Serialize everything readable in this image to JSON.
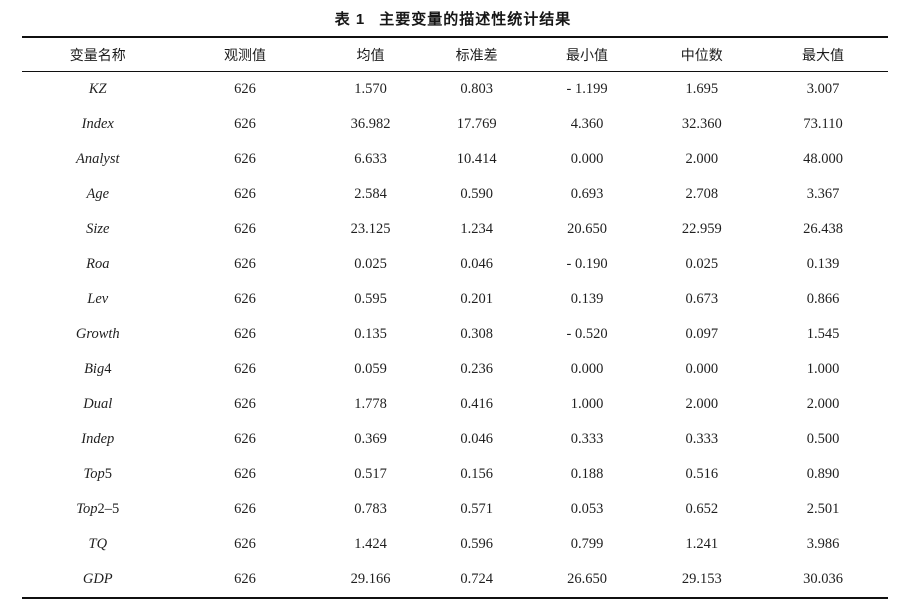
{
  "caption": {
    "label": "表 1",
    "title": "主要变量的描述性统计结果"
  },
  "table": {
    "columns": [
      "变量名称",
      "观测值",
      "均值",
      "标准差",
      "最小值",
      "中位数",
      "最大值"
    ],
    "rows": [
      [
        "KZ",
        "626",
        "1.570",
        "0.803",
        "- 1.199",
        "1.695",
        "3.007"
      ],
      [
        "Index",
        "626",
        "36.982",
        "17.769",
        "4.360",
        "32.360",
        "73.110"
      ],
      [
        "Analyst",
        "626",
        "6.633",
        "10.414",
        "0.000",
        "2.000",
        "48.000"
      ],
      [
        "Age",
        "626",
        "2.584",
        "0.590",
        "0.693",
        "2.708",
        "3.367"
      ],
      [
        "Size",
        "626",
        "23.125",
        "1.234",
        "20.650",
        "22.959",
        "26.438"
      ],
      [
        "Roa",
        "626",
        "0.025",
        "0.046",
        "- 0.190",
        "0.025",
        "0.139"
      ],
      [
        "Lev",
        "626",
        "0.595",
        "0.201",
        "0.139",
        "0.673",
        "0.866"
      ],
      [
        "Growth",
        "626",
        "0.135",
        "0.308",
        "- 0.520",
        "0.097",
        "1.545"
      ],
      [
        "Big4",
        "626",
        "0.059",
        "0.236",
        "0.000",
        "0.000",
        "1.000"
      ],
      [
        "Dual",
        "626",
        "1.778",
        "0.416",
        "1.000",
        "2.000",
        "2.000"
      ],
      [
        "Indep",
        "626",
        "0.369",
        "0.046",
        "0.333",
        "0.333",
        "0.500"
      ],
      [
        "Top5",
        "626",
        "0.517",
        "0.156",
        "0.188",
        "0.516",
        "0.890"
      ],
      [
        "Top2–5",
        "626",
        "0.783",
        "0.571",
        "0.053",
        "0.652",
        "2.501"
      ],
      [
        "TQ",
        "626",
        "1.424",
        "0.596",
        "0.799",
        "1.241",
        "3.986"
      ],
      [
        "GDP",
        "626",
        "29.166",
        "0.724",
        "26.650",
        "29.153",
        "30.036"
      ]
    ]
  }
}
